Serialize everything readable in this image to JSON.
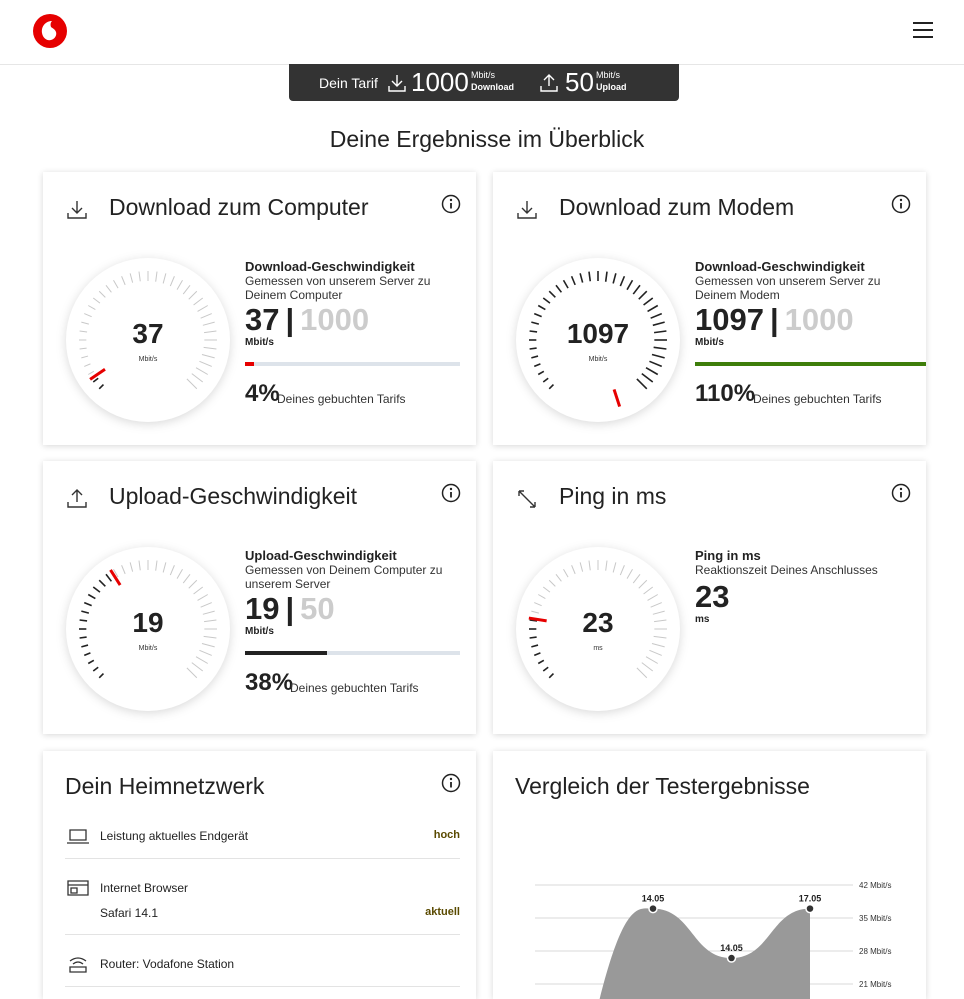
{
  "tariff": {
    "label": "Dein Tarif",
    "download": {
      "value": "1000",
      "unit": "Mbit/s",
      "label": "Download"
    },
    "upload": {
      "value": "50",
      "unit": "Mbit/s",
      "label": "Upload"
    }
  },
  "title": "Deine Ergebnisse im Überblick",
  "cards": [
    {
      "title": "Download zum Computer",
      "gauge": {
        "value": "37",
        "unit": "Mbit/s"
      },
      "heading": "Download-Geschwindigkeit",
      "description": "Gemessen von unserem Server zu Deinem Computer",
      "result": "37",
      "separator": "|",
      "tariff": "1000",
      "unit": "Mbit/s",
      "share": {
        "value": 4,
        "label": "4%"
      },
      "share_text": "Deines gebuchten Tarifs"
    },
    {
      "title": "Download zum Modem",
      "gauge": {
        "value": "1097",
        "unit": "Mbit/s"
      },
      "heading": "Download-Geschwindigkeit",
      "description": "Gemessen von unserem Server zu Deinem Modem",
      "result": "1097",
      "separator": "|",
      "tariff": "1000",
      "unit": "Mbit/s",
      "share": {
        "value": 110,
        "label": "110%"
      },
      "share_text": "Deines gebuchten Tarifs"
    },
    {
      "title": "Upload-Geschwindigkeit",
      "gauge": {
        "value": "19",
        "unit": "Mbit/s"
      },
      "heading": "Upload-Geschwindigkeit",
      "description": "Gemessen von Deinem Computer zu unserem Server",
      "result": "19",
      "separator": "|",
      "tariff": "50",
      "unit": "Mbit/s",
      "share": {
        "value": 38,
        "label": "38%"
      },
      "share_text": "Deines gebuchten Tarifs"
    },
    {
      "title": "Ping in ms",
      "gauge": {
        "value": "23",
        "unit": "ms"
      },
      "heading": "Ping in ms",
      "description": "Reaktionszeit Deines Anschlusses",
      "result": "23",
      "unit": "ms"
    }
  ],
  "home_network": {
    "title": "Dein Heimnetzwerk",
    "rows": [
      {
        "label": "Leistung aktuelles Endgerät",
        "status": "hoch"
      },
      {
        "label": "Internet Browser",
        "detail": "Safari 14.1",
        "status": "aktuell"
      },
      {
        "label": "Router: Vodafone Station"
      }
    ]
  },
  "chart_data": {
    "type": "area",
    "title": "Vergleich der Testergebnisse",
    "categories": [
      "14.05",
      "14.05",
      "17.05"
    ],
    "values": [
      37,
      26.5,
      37
    ],
    "color": "#999999",
    "ylim": [
      18,
      44
    ],
    "yticks": [
      {
        "value": 42,
        "label": "42 Mbit/s"
      },
      {
        "value": 35,
        "label": "35 Mbit/s"
      },
      {
        "value": 28,
        "label": "28 Mbit/s"
      },
      {
        "value": 21,
        "label": "21 Mbit/s"
      }
    ],
    "grid": true
  }
}
